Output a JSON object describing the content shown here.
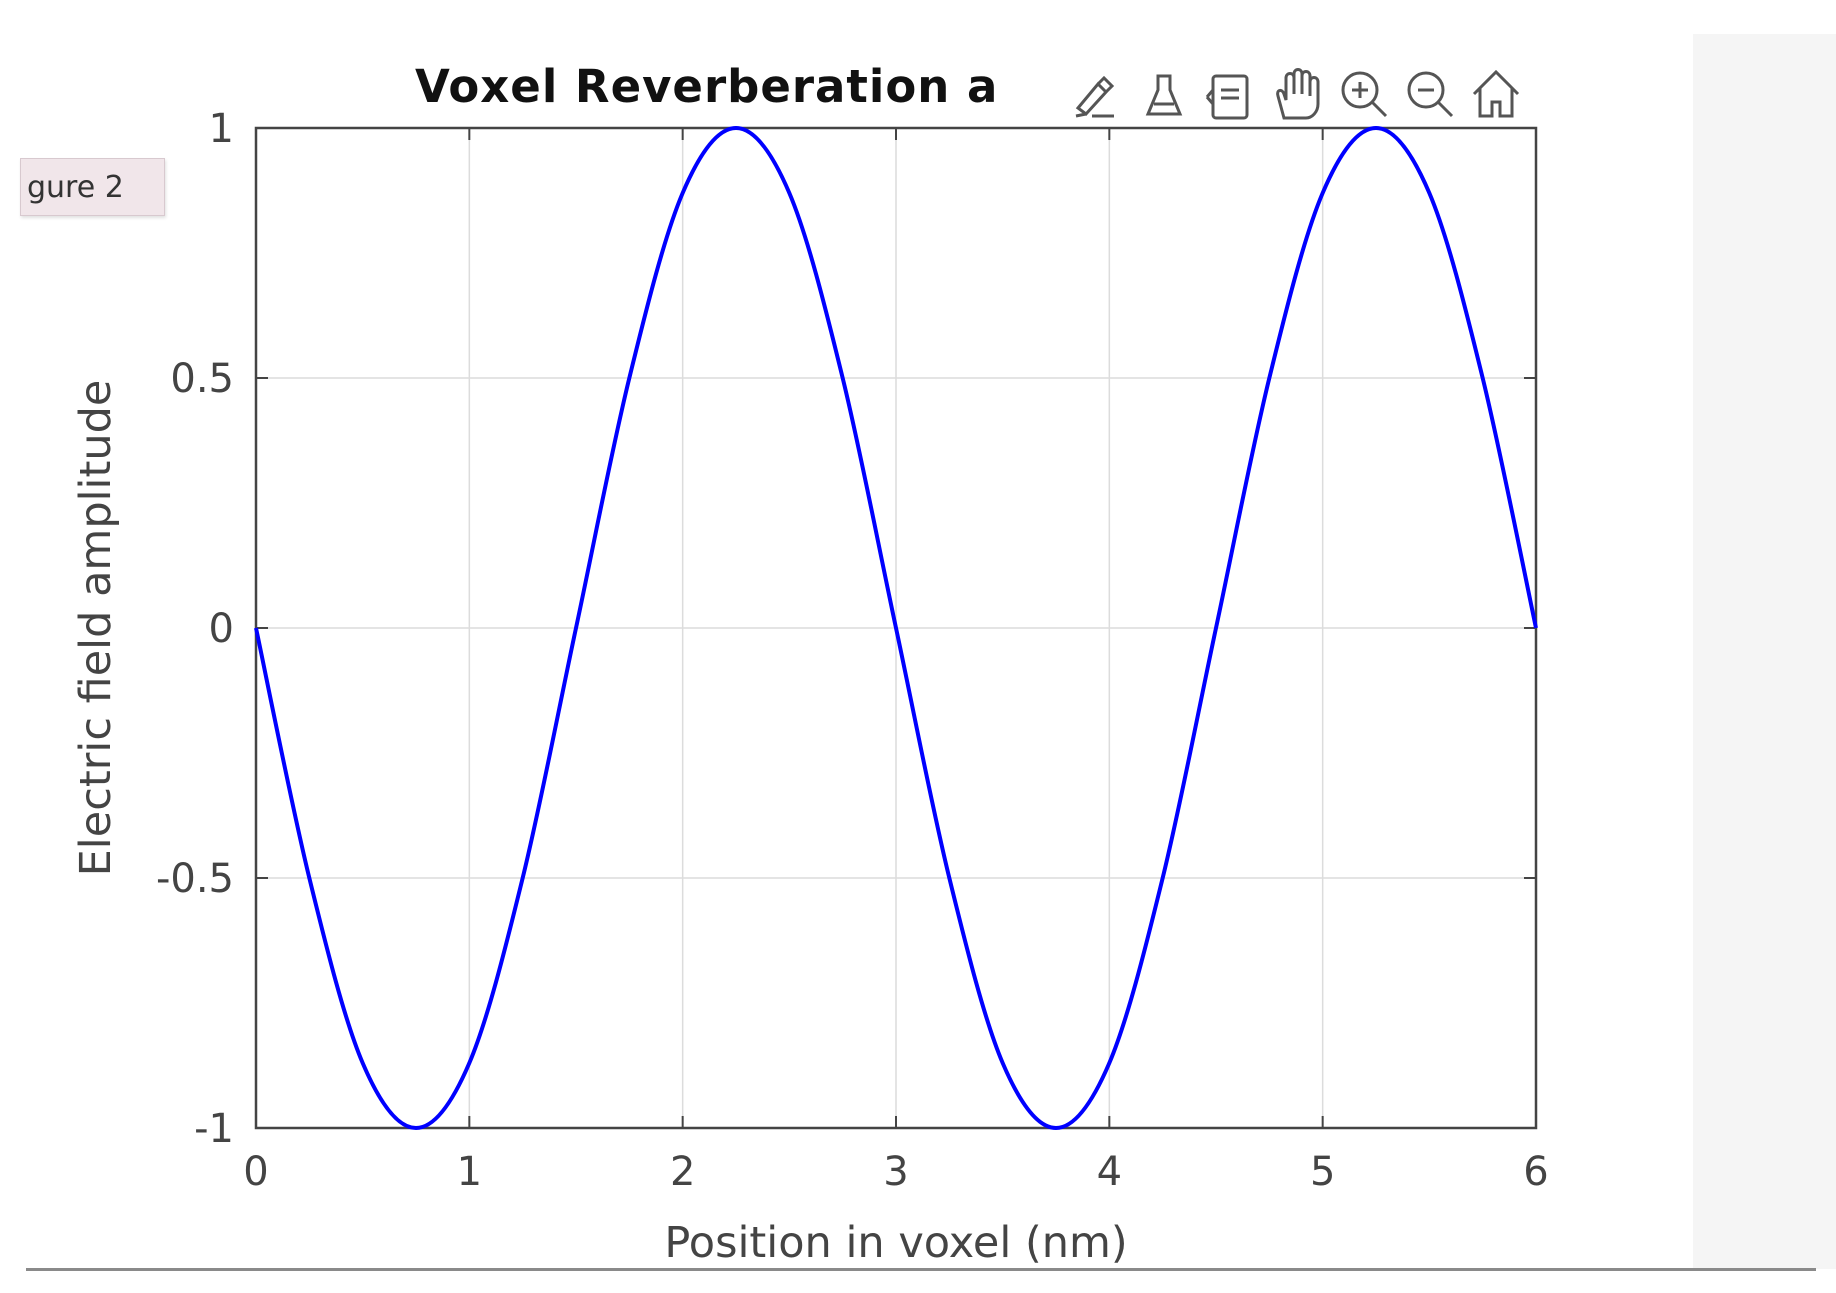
{
  "window": {
    "tab_label": "gure 2"
  },
  "toolbar": {
    "icons": [
      "brush-icon",
      "legend-icon",
      "colorbar-icon",
      "pan-hand-icon",
      "zoom-in-icon",
      "zoom-out-icon",
      "home-icon"
    ]
  },
  "chart_data": {
    "type": "line",
    "title": "Voxel Reverberation a",
    "xlabel": "Position in voxel (nm)",
    "ylabel": "Electric field amplitude",
    "xlim": [
      0,
      6
    ],
    "ylim": [
      -1,
      1
    ],
    "xticks": [
      "0",
      "1",
      "2",
      "3",
      "4",
      "5",
      "6"
    ],
    "yticks": [
      "-1",
      "-0.5",
      "0",
      "0.5",
      "1"
    ],
    "grid": true,
    "series": [
      {
        "color": "#0000ff",
        "x": [
          0,
          0.25,
          0.5,
          0.75,
          1.0,
          1.25,
          1.5,
          1.75,
          2.0,
          2.25,
          2.5,
          2.75,
          3.0,
          3.25,
          3.5,
          3.75,
          4.0,
          4.25,
          4.5,
          4.75,
          5.0,
          5.25,
          5.5,
          5.75,
          6.0
        ],
        "y": [
          0,
          -0.5,
          -0.87,
          -1.0,
          -0.87,
          -0.5,
          0,
          0.5,
          0.87,
          1.0,
          0.87,
          0.5,
          0,
          -0.5,
          -0.87,
          -1.0,
          -0.87,
          -0.5,
          0,
          0.5,
          0.87,
          1.0,
          0.87,
          0.5,
          0
        ]
      }
    ]
  }
}
